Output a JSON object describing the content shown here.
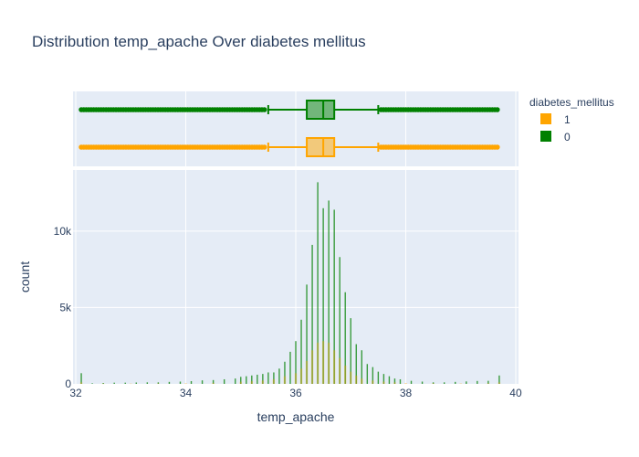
{
  "chart_data": {
    "type": "histogram",
    "title": "Distribution temp_apache Over diabetes mellitus",
    "xlabel": "temp_apache",
    "ylabel": "count",
    "xlim": [
      31.95,
      40.05
    ],
    "ylim": [
      0,
      14000
    ],
    "x_ticks": [
      "32",
      "34",
      "36",
      "38",
      "40"
    ],
    "y_ticks": [
      "0",
      "5k",
      "10k"
    ],
    "legend": {
      "title": "diabetes_mellitus",
      "position": "right",
      "entries": [
        {
          "label": "1",
          "color": "#ffa500"
        },
        {
          "label": "0",
          "color": "#008000"
        }
      ]
    },
    "series": [
      {
        "name": "0",
        "color": "#008000",
        "bins": [
          [
            32.1,
            700
          ],
          [
            32.3,
            40
          ],
          [
            32.5,
            60
          ],
          [
            32.7,
            80
          ],
          [
            32.9,
            80
          ],
          [
            33.1,
            90
          ],
          [
            33.3,
            100
          ],
          [
            33.5,
            100
          ],
          [
            33.7,
            130
          ],
          [
            33.9,
            150
          ],
          [
            34.1,
            180
          ],
          [
            34.3,
            230
          ],
          [
            34.5,
            250
          ],
          [
            34.7,
            300
          ],
          [
            34.9,
            350
          ],
          [
            35.0,
            460
          ],
          [
            35.1,
            500
          ],
          [
            35.2,
            550
          ],
          [
            35.3,
            600
          ],
          [
            35.4,
            650
          ],
          [
            35.5,
            750
          ],
          [
            35.6,
            750
          ],
          [
            35.7,
            1000
          ],
          [
            35.8,
            1450
          ],
          [
            35.9,
            2100
          ],
          [
            36.0,
            2800
          ],
          [
            36.1,
            4200
          ],
          [
            36.2,
            6500
          ],
          [
            36.3,
            9100
          ],
          [
            36.4,
            13200
          ],
          [
            36.5,
            11500
          ],
          [
            36.6,
            12000
          ],
          [
            36.7,
            11400
          ],
          [
            36.8,
            8300
          ],
          [
            36.9,
            6000
          ],
          [
            37.0,
            4300
          ],
          [
            37.1,
            2600
          ],
          [
            37.2,
            2200
          ],
          [
            37.3,
            1300
          ],
          [
            37.4,
            1100
          ],
          [
            37.5,
            800
          ],
          [
            37.6,
            650
          ],
          [
            37.7,
            500
          ],
          [
            37.8,
            350
          ],
          [
            37.9,
            300
          ],
          [
            38.1,
            200
          ],
          [
            38.3,
            150
          ],
          [
            38.5,
            100
          ],
          [
            38.7,
            100
          ],
          [
            38.9,
            130
          ],
          [
            39.1,
            160
          ],
          [
            39.3,
            190
          ],
          [
            39.5,
            200
          ],
          [
            39.7,
            550
          ]
        ]
      },
      {
        "name": "1",
        "color": "#ffa500",
        "bins": [
          [
            32.1,
            100
          ],
          [
            32.5,
            20
          ],
          [
            33.0,
            25
          ],
          [
            33.5,
            30
          ],
          [
            34.0,
            45
          ],
          [
            34.5,
            70
          ],
          [
            35.0,
            140
          ],
          [
            35.2,
            170
          ],
          [
            35.4,
            220
          ],
          [
            35.6,
            300
          ],
          [
            35.8,
            500
          ],
          [
            36.0,
            700
          ],
          [
            36.1,
            1000
          ],
          [
            36.2,
            1500
          ],
          [
            36.3,
            2200
          ],
          [
            36.4,
            2700
          ],
          [
            36.5,
            2800
          ],
          [
            36.6,
            2700
          ],
          [
            36.7,
            2200
          ],
          [
            36.8,
            1700
          ],
          [
            36.9,
            1200
          ],
          [
            37.0,
            800
          ],
          [
            37.1,
            550
          ],
          [
            37.2,
            350
          ],
          [
            37.4,
            220
          ],
          [
            37.6,
            150
          ],
          [
            37.8,
            100
          ],
          [
            38.0,
            60
          ],
          [
            38.5,
            40
          ],
          [
            39.0,
            35
          ],
          [
            39.5,
            45
          ],
          [
            39.7,
            100
          ]
        ]
      }
    ],
    "boxes": [
      {
        "name": "0",
        "color": "#008000",
        "min": 32.1,
        "q1": 36.2,
        "median": 36.5,
        "q3": 36.7,
        "max": 39.7,
        "lower_fence": 35.5,
        "upper_fence": 37.5
      },
      {
        "name": "1",
        "color": "#ffa500",
        "min": 32.1,
        "q1": 36.2,
        "median": 36.5,
        "q3": 36.7,
        "max": 39.7,
        "lower_fence": 35.5,
        "upper_fence": 37.5
      }
    ]
  }
}
